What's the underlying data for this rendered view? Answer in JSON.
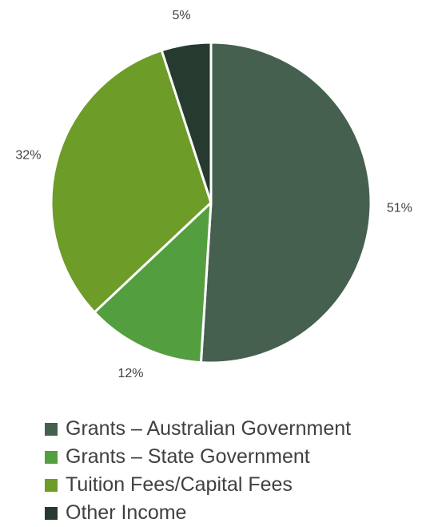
{
  "chart_data": {
    "type": "pie",
    "title": "",
    "slices": [
      {
        "label": "Grants – Australian Government",
        "value": 51,
        "display": "51%",
        "color": "#46604f"
      },
      {
        "label": "Grants – State Government",
        "value": 12,
        "display": "12%",
        "color": "#539e3f"
      },
      {
        "label": "Tuition Fees/Capital Fees",
        "value": 32,
        "display": "32%",
        "color": "#6e9c28"
      },
      {
        "label": "Other Income",
        "value": 5,
        "display": "5%",
        "color": "#273a2f"
      }
    ],
    "legend_position": "bottom",
    "start_angle": "12 o'clock",
    "direction": "clockwise"
  }
}
